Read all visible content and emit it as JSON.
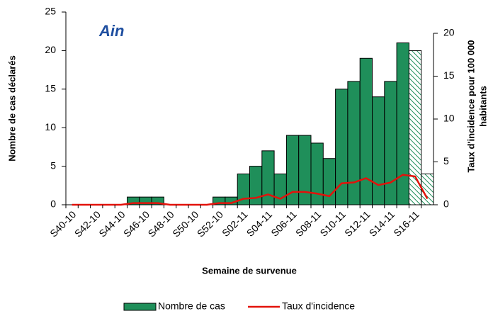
{
  "chart_data": {
    "type": "bar_line",
    "title": "Ain",
    "y_label": "Nombre de cas déclarés",
    "y2_label": [
      "Taux d'incidence pour 100 000",
      "habitants"
    ],
    "x_label": "Semaine de survenue",
    "categories": [
      "S40-10",
      null,
      "S42-10",
      null,
      "S44-10",
      null,
      "S46-10",
      null,
      "S48-10",
      null,
      "S50-10",
      null,
      "S52-10",
      null,
      "S02-11",
      null,
      "S04-11",
      null,
      "S06-11",
      null,
      "S08-11",
      null,
      "S10-11",
      null,
      "S12-11",
      null,
      "S14-11",
      null,
      "S16-11",
      null
    ],
    "series": [
      {
        "name": "Nombre de cas",
        "type": "bar",
        "color": "#1f8f5a",
        "values": [
          0,
          0,
          0,
          0,
          0,
          1,
          1,
          1,
          0,
          0,
          0,
          0,
          1,
          1,
          4,
          5,
          7,
          4,
          9,
          9,
          8,
          6,
          15,
          16,
          19,
          14,
          16,
          21,
          20,
          4
        ],
        "patterns": [
          "solid",
          "solid",
          "solid",
          "solid",
          "solid",
          "solid",
          "solid",
          "solid",
          "solid",
          "solid",
          "solid",
          "solid",
          "solid",
          "solid",
          "solid",
          "solid",
          "solid",
          "solid",
          "solid",
          "solid",
          "solid",
          "solid",
          "solid",
          "solid",
          "solid",
          "solid",
          "solid",
          "solid",
          "hatched",
          "hatched"
        ]
      },
      {
        "name": "Taux d'incidence",
        "type": "line",
        "color": "#e3120b",
        "axis": "y2",
        "values": [
          0,
          0,
          0,
          0,
          0,
          0.2,
          0.2,
          0.2,
          0,
          0,
          0,
          0,
          0.2,
          0.2,
          0.7,
          0.8,
          1.2,
          0.7,
          1.5,
          1.5,
          1.3,
          1.0,
          2.5,
          2.6,
          3.1,
          2.3,
          2.6,
          3.5,
          3.3,
          0.7
        ]
      }
    ],
    "ylim": [
      0,
      25
    ],
    "yticks": [
      0,
      5,
      10,
      15,
      20,
      25
    ],
    "y2lim": [
      0,
      20
    ],
    "y2ticks": [
      0,
      5,
      10,
      15,
      20
    ],
    "legend": "bottom"
  }
}
